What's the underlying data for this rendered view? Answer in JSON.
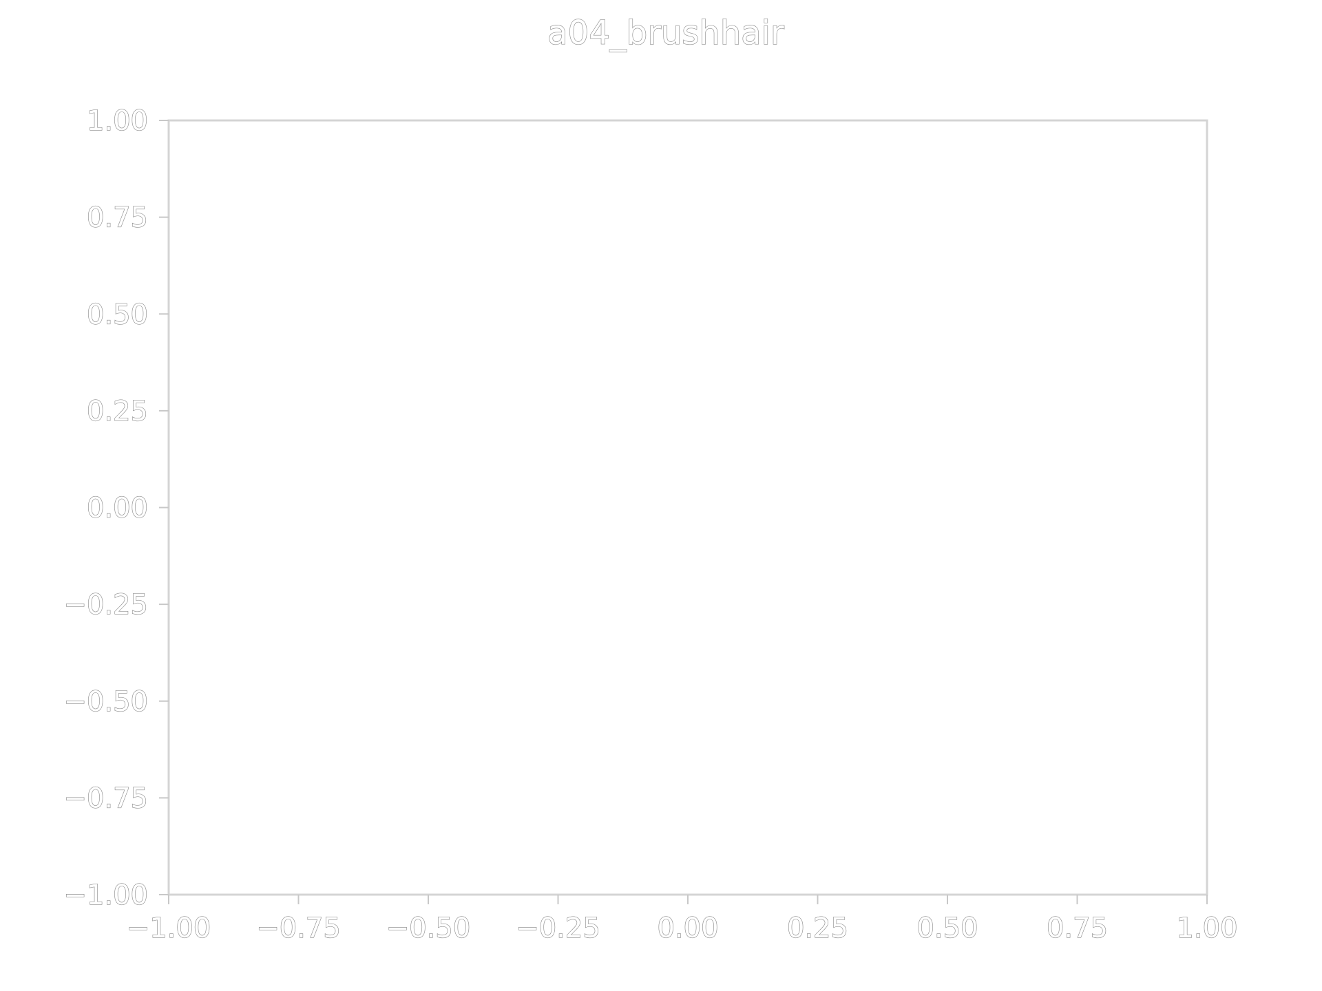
{
  "colors": {
    "background": "#ffffff",
    "frame": "#d4d4d4",
    "text_outline": "#8c8c8c"
  },
  "chart_data": {
    "type": "scatter",
    "title": "a04_brushhair",
    "xlabel": "",
    "ylabel": "",
    "xlim": [
      -1.0,
      1.0
    ],
    "ylim": [
      -1.0,
      1.0
    ],
    "x_ticks": [
      -1.0,
      -0.75,
      -0.5,
      -0.25,
      0.0,
      0.25,
      0.5,
      0.75,
      1.0
    ],
    "x_tick_labels": [
      "−1.00",
      "−0.75",
      "−0.50",
      "−0.25",
      "0.00",
      "0.25",
      "0.50",
      "0.75",
      "1.00"
    ],
    "y_ticks": [
      -1.0,
      -0.75,
      -0.5,
      -0.25,
      0.0,
      0.25,
      0.5,
      0.75,
      1.0
    ],
    "y_tick_labels": [
      "−1.00",
      "−0.75",
      "−0.50",
      "−0.25",
      "0.00",
      "0.25",
      "0.50",
      "0.75",
      "1.00"
    ],
    "grid": false,
    "series": []
  }
}
